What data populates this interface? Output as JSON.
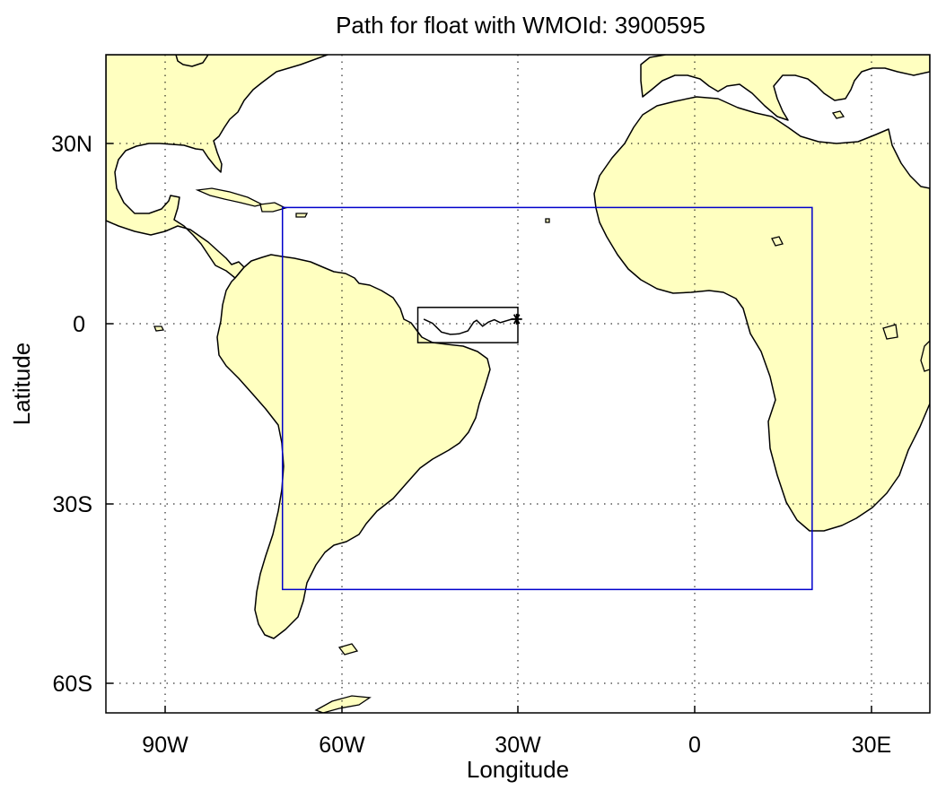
{
  "figure": {
    "title": "Path for float with WMOId: 3900595",
    "xlabel": "Longitude",
    "ylabel": "Latitude"
  },
  "map": {
    "projection": "equirectangular",
    "lon_range": [
      -100,
      40
    ],
    "lat_range": [
      -66,
      46
    ],
    "land_color": "#ffffc0",
    "ocean_color": "#ffffff",
    "coastline_color": "#000000",
    "grid": true,
    "x_ticks": [
      {
        "value": -90,
        "label": "90W"
      },
      {
        "value": -60,
        "label": "60W"
      },
      {
        "value": -30,
        "label": "30W"
      },
      {
        "value": 0,
        "label": "0"
      },
      {
        "value": 30,
        "label": "30E"
      }
    ],
    "y_ticks": [
      {
        "value": 30,
        "label": "30N"
      },
      {
        "value": 0,
        "label": "0"
      },
      {
        "value": -30,
        "label": "30S"
      },
      {
        "value": -60,
        "label": "60S"
      }
    ],
    "region_box": {
      "color": "#0000cc",
      "lon": [
        -70,
        20
      ],
      "lat": [
        -45,
        20
      ]
    },
    "float_box": {
      "color": "#000000",
      "lon": [
        -47,
        -30
      ],
      "lat": [
        -3,
        3
      ]
    },
    "float_track": {
      "color": "#000000",
      "marker": "asterisk",
      "points": [
        [
          -46,
          1
        ],
        [
          -44.5,
          0.3
        ],
        [
          -43,
          -1.2
        ],
        [
          -41.5,
          -1.6
        ],
        [
          -40,
          -1.5
        ],
        [
          -38.5,
          -1
        ],
        [
          -37.5,
          0.5
        ],
        [
          -37,
          0.8
        ],
        [
          -36,
          -0.2
        ],
        [
          -35,
          0.5
        ],
        [
          -34,
          0.9
        ],
        [
          -33,
          0.4
        ],
        [
          -31,
          1
        ],
        [
          -30.2,
          1
        ]
      ]
    }
  }
}
